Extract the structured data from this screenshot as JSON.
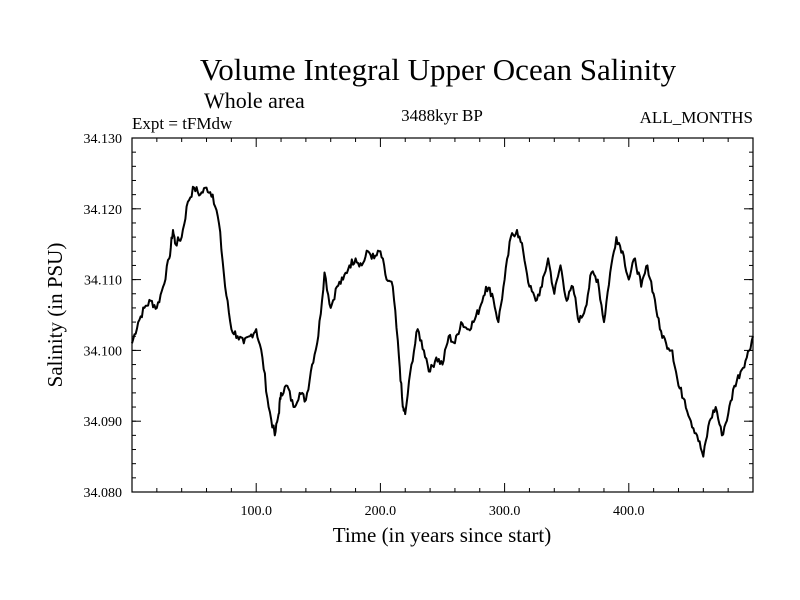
{
  "header": {
    "title": "Volume Integral Upper Ocean Salinity",
    "subtitle": "Whole area",
    "expt": "Expt = tFMdw",
    "epoch": "3488kyr BP",
    "months": "ALL_MONTHS"
  },
  "chart_data": {
    "type": "line",
    "title": "Volume Integral Upper Ocean Salinity",
    "xlabel": "Time (in years since start)",
    "ylabel": "Salinity (in PSU)",
    "xlim": [
      0,
      500
    ],
    "ylim": [
      34.08,
      34.13
    ],
    "x_ticks": [
      100,
      200,
      300,
      400
    ],
    "x_tick_labels": [
      "100.0",
      "200.0",
      "300.0",
      "400.0"
    ],
    "y_ticks": [
      34.08,
      34.09,
      34.1,
      34.11,
      34.12,
      34.13
    ],
    "y_tick_labels": [
      "34.080",
      "34.090",
      "34.100",
      "34.110",
      "34.120",
      "34.130"
    ],
    "grid": false,
    "series": [
      {
        "name": "Salinity",
        "color": "#000000",
        "x": [
          0,
          5,
          10,
          15,
          20,
          25,
          30,
          33,
          35,
          40,
          45,
          50,
          55,
          60,
          65,
          70,
          75,
          80,
          85,
          90,
          95,
          100,
          105,
          110,
          115,
          118,
          120,
          125,
          130,
          135,
          140,
          145,
          150,
          155,
          160,
          165,
          170,
          175,
          180,
          185,
          190,
          195,
          200,
          205,
          210,
          215,
          218,
          220,
          225,
          230,
          235,
          240,
          245,
          250,
          255,
          260,
          265,
          270,
          275,
          280,
          285,
          290,
          295,
          300,
          305,
          310,
          315,
          320,
          325,
          330,
          335,
          340,
          345,
          350,
          355,
          360,
          365,
          370,
          375,
          380,
          385,
          390,
          395,
          400,
          405,
          410,
          415,
          420,
          425,
          430,
          435,
          440,
          445,
          450,
          455,
          460,
          465,
          470,
          475,
          480,
          485,
          490,
          495,
          500
        ],
        "values": [
          34.101,
          34.104,
          34.106,
          34.107,
          34.106,
          34.109,
          34.113,
          34.117,
          34.115,
          34.116,
          34.121,
          34.123,
          34.122,
          34.123,
          34.122,
          34.118,
          34.109,
          34.103,
          34.102,
          34.101,
          34.102,
          34.103,
          34.099,
          34.092,
          34.088,
          34.091,
          34.094,
          34.095,
          34.092,
          34.094,
          34.093,
          34.098,
          34.102,
          34.111,
          34.106,
          34.109,
          34.11,
          34.112,
          34.113,
          34.112,
          34.114,
          34.113,
          34.114,
          34.11,
          34.109,
          34.099,
          34.092,
          34.091,
          34.098,
          34.103,
          34.1,
          34.097,
          34.099,
          34.098,
          34.102,
          34.101,
          34.104,
          34.103,
          34.104,
          34.106,
          34.109,
          34.108,
          34.104,
          34.11,
          34.116,
          34.117,
          34.114,
          34.109,
          34.107,
          34.109,
          34.113,
          34.108,
          34.112,
          34.107,
          34.109,
          34.104,
          34.106,
          34.111,
          34.11,
          34.104,
          34.111,
          34.116,
          34.114,
          34.11,
          34.113,
          34.109,
          34.112,
          34.108,
          34.103,
          34.101,
          34.1,
          34.095,
          34.093,
          34.09,
          34.088,
          34.085,
          34.09,
          34.092,
          34.088,
          34.091,
          34.095,
          34.097,
          34.099,
          34.102
        ]
      }
    ]
  }
}
